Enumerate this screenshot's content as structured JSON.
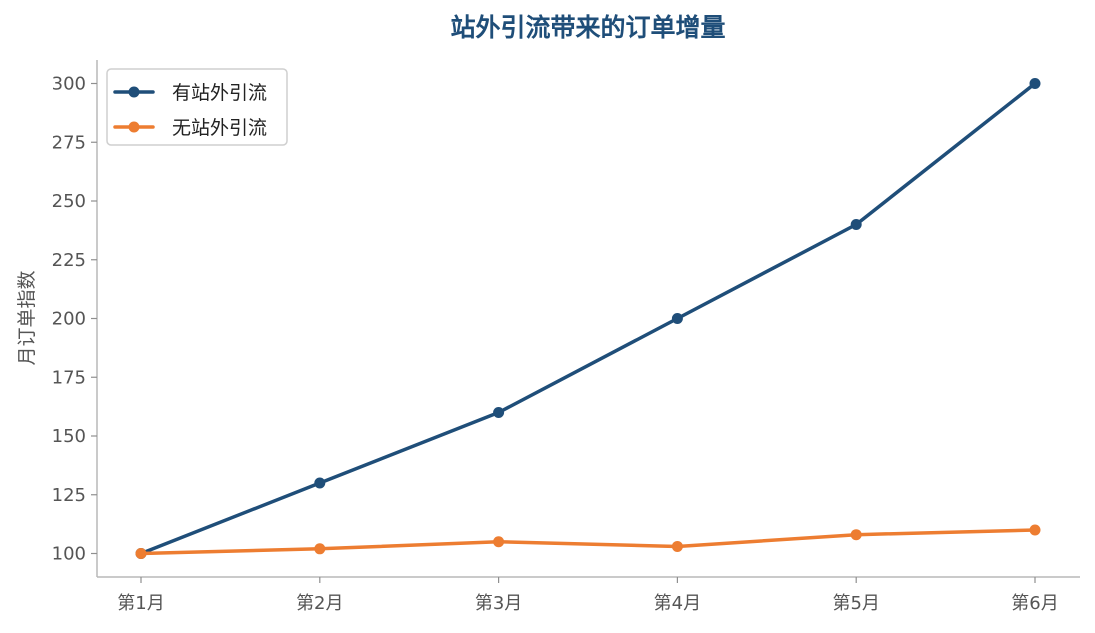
{
  "chart_data": {
    "type": "line",
    "title": "站外引流带来的订单增量",
    "xlabel": "",
    "ylabel": "月订单指数",
    "categories": [
      "第1月",
      "第2月",
      "第3月",
      "第4月",
      "第5月",
      "第6月"
    ],
    "series": [
      {
        "name": "有站外引流",
        "values": [
          100,
          130,
          160,
          200,
          240,
          300
        ],
        "color": "#1f4e79"
      },
      {
        "name": "无站外引流",
        "values": [
          100,
          102,
          105,
          103,
          108,
          110
        ],
        "color": "#ed7d31"
      }
    ],
    "yticks": [
      100,
      125,
      150,
      175,
      200,
      225,
      250,
      275,
      300
    ],
    "ylim": [
      90,
      310
    ],
    "grid": false,
    "legend_position": "top-left",
    "title_color": "#1f4e79"
  }
}
